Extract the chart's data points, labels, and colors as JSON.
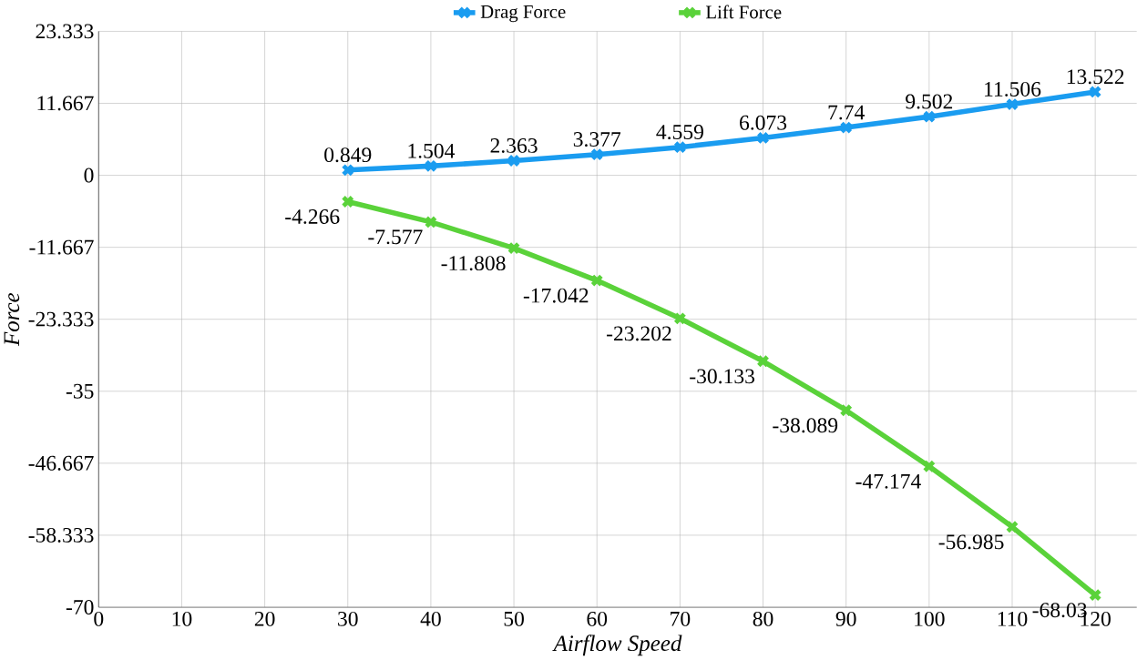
{
  "chart_data": {
    "type": "line",
    "xlabel": "Airflow Speed",
    "ylabel": "Force",
    "x": [
      30,
      40,
      50,
      60,
      70,
      80,
      90,
      100,
      110,
      120
    ],
    "series": [
      {
        "name": "Drag Force",
        "color": "#1a9cf0",
        "values": [
          0.849,
          1.504,
          2.363,
          3.377,
          4.559,
          6.073,
          7.74,
          9.502,
          11.506,
          13.522
        ]
      },
      {
        "name": "Lift Force",
        "color": "#5ad23a",
        "values": [
          -4.266,
          -7.577,
          -11.808,
          -17.042,
          -23.202,
          -30.133,
          -38.089,
          -47.174,
          -56.985,
          -68.03
        ]
      }
    ],
    "xlim": [
      0,
      125
    ],
    "xticks": [
      0,
      10,
      20,
      30,
      40,
      50,
      60,
      70,
      80,
      90,
      100,
      110,
      120
    ],
    "ylim": [
      -70,
      23.333
    ],
    "yticks": [
      23.333,
      11.667,
      0,
      -11.667,
      -23.333,
      -35,
      -46.667,
      -58.333,
      -70
    ],
    "grid": true,
    "legend": "top",
    "marker": "cross",
    "line_style": "solid",
    "data_labels": true
  }
}
